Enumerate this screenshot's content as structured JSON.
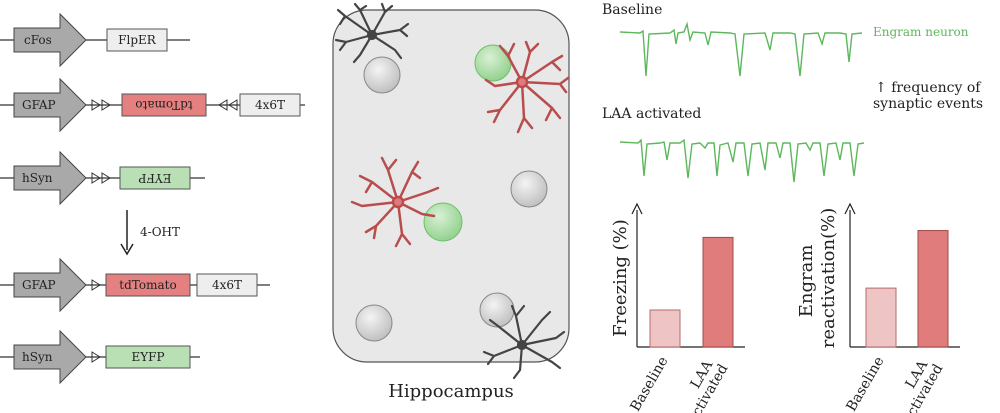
{
  "constructs": {
    "row1": {
      "promoter": "cFos",
      "box": "FlpER"
    },
    "row2": {
      "promoter": "GFAP",
      "box": "tdTomato",
      "box2": "4x6T"
    },
    "row3": {
      "promoter": "hSyn",
      "box": "EYFP"
    },
    "treatment": "4-OHT",
    "row4": {
      "promoter": "GFAP",
      "box": "tdTomato",
      "box2": "4x6T"
    },
    "row5": {
      "promoter": "hSyn",
      "box": "EYFP"
    }
  },
  "hippocampus": {
    "label": "Hippocampus"
  },
  "traces": {
    "baseline_title": "Baseline",
    "activated_title": "LAA activated",
    "legend": "Engram neuron",
    "note_line1": "frequency of",
    "note_line2": "synaptic events"
  },
  "colors": {
    "promoter_gray": "#a9a9a9",
    "red_box": "#e48080",
    "green_box": "#b9dfb5",
    "astro_red": "#e27a7a",
    "green_trace": "#5cb85c",
    "bar_light": "#eec4c4",
    "bar_dark": "#e07c7c"
  },
  "chart_data": [
    {
      "type": "bar",
      "categories": [
        "Baseline",
        "LAA activated"
      ],
      "values": [
        0.27,
        0.8
      ],
      "ylabel": "Freezing (%)",
      "ylim": [
        0,
        1
      ]
    },
    {
      "type": "bar",
      "categories": [
        "Baseline",
        "LAA activated"
      ],
      "values": [
        0.43,
        0.85
      ],
      "ylabel": "Engram reactivation(%)",
      "ylim": [
        0,
        1
      ]
    }
  ]
}
